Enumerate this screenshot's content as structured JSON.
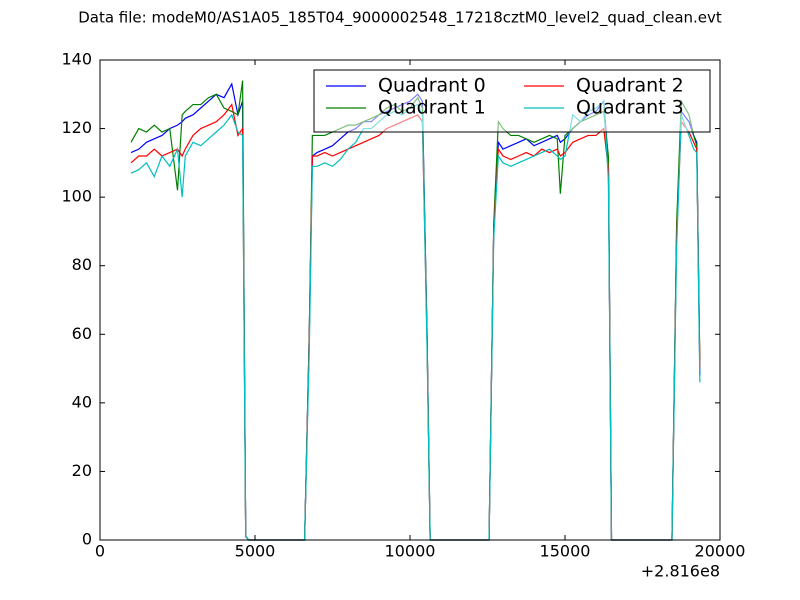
{
  "chart_data": {
    "type": "line",
    "title": "Data file: modeM0/AS1A05_185T04_9000002548_17218cztM0_level2_quad_clean.evt",
    "x_offset_label": "+2.816e8",
    "x": [
      1000,
      1250,
      1500,
      1750,
      2000,
      2250,
      2500,
      2650,
      2750,
      3000,
      3250,
      3500,
      3750,
      4000,
      4250,
      4450,
      4600,
      4700,
      4800,
      5500,
      6000,
      6600,
      6750,
      6850,
      7000,
      7250,
      7500,
      7750,
      8000,
      8250,
      8500,
      8750,
      9000,
      9250,
      9500,
      9750,
      10000,
      10250,
      10400,
      10550,
      10650,
      11000,
      12000,
      12550,
      12700,
      12850,
      13000,
      13250,
      13500,
      13750,
      14000,
      14250,
      14500,
      14750,
      14850,
      15000,
      15250,
      15500,
      15750,
      16000,
      16250,
      16400,
      16500,
      17000,
      18000,
      18450,
      18600,
      18750,
      19000,
      19150,
      19250,
      19350
    ],
    "series": [
      {
        "name": "Quadrant 0",
        "color": "#0000ff",
        "values": [
          113,
          114,
          116,
          117,
          118,
          120,
          121,
          122,
          123,
          124,
          126,
          128,
          130,
          129,
          133,
          124,
          128,
          1,
          0,
          0,
          0,
          0,
          60,
          112,
          113,
          114,
          115,
          117,
          119,
          120,
          122,
          122,
          124,
          125,
          126,
          127,
          128,
          130,
          128,
          60,
          0,
          0,
          0,
          0,
          90,
          116,
          114,
          115,
          116,
          117,
          115,
          116,
          117,
          118,
          116,
          117,
          120,
          122,
          124,
          125,
          128,
          110,
          0,
          0,
          0,
          0,
          90,
          125,
          122,
          118,
          116,
          48
        ]
      },
      {
        "name": "Quadrant 1",
        "color": "#008000",
        "values": [
          116,
          120,
          119,
          121,
          119,
          120,
          102,
          124,
          125,
          127,
          127,
          129,
          130,
          126,
          125,
          124,
          134,
          1,
          0,
          0,
          0,
          0,
          60,
          118,
          118,
          118,
          119,
          120,
          121,
          121,
          122,
          123,
          124,
          126,
          127,
          125,
          126,
          129,
          126,
          60,
          0,
          0,
          0,
          0,
          92,
          122,
          120,
          118,
          118,
          117,
          116,
          117,
          118,
          117,
          101,
          118,
          120,
          122,
          123,
          124,
          125,
          112,
          0,
          0,
          0,
          0,
          92,
          128,
          124,
          118,
          115,
          52
        ]
      },
      {
        "name": "Quadrant 2",
        "color": "#ff0000",
        "values": [
          110,
          112,
          112,
          114,
          112,
          113,
          114,
          112,
          114,
          118,
          120,
          121,
          122,
          124,
          127,
          118,
          120,
          1,
          0,
          0,
          0,
          0,
          58,
          112,
          112,
          113,
          112,
          113,
          114,
          115,
          116,
          117,
          118,
          120,
          121,
          122,
          123,
          124,
          122,
          58,
          0,
          0,
          0,
          0,
          90,
          114,
          112,
          111,
          112,
          113,
          112,
          114,
          113,
          114,
          112,
          113,
          116,
          117,
          118,
          118,
          120,
          108,
          0,
          0,
          0,
          0,
          88,
          122,
          119,
          116,
          114,
          50
        ]
      },
      {
        "name": "Quadrant 3",
        "color": "#00bfbf",
        "values": [
          107,
          108,
          110,
          106,
          112,
          109,
          114,
          100,
          112,
          116,
          115,
          117,
          119,
          121,
          124,
          119,
          118,
          1,
          0,
          0,
          0,
          0,
          55,
          109,
          109,
          110,
          109,
          111,
          114,
          116,
          120,
          120,
          122,
          124,
          125,
          124,
          126,
          127,
          124,
          56,
          0,
          0,
          0,
          0,
          88,
          112,
          110,
          109,
          110,
          111,
          112,
          113,
          114,
          112,
          111,
          112,
          124,
          122,
          125,
          126,
          128,
          105,
          0,
          0,
          0,
          0,
          85,
          124,
          118,
          114,
          113,
          46
        ]
      }
    ],
    "xlim": [
      0,
      20000
    ],
    "xticks": [
      0,
      5000,
      10000,
      15000,
      20000
    ],
    "ylim": [
      0,
      140
    ],
    "yticks": [
      0,
      20,
      40,
      60,
      80,
      100,
      120,
      140
    ],
    "legend": "upper right",
    "legend_columns": 2
  }
}
